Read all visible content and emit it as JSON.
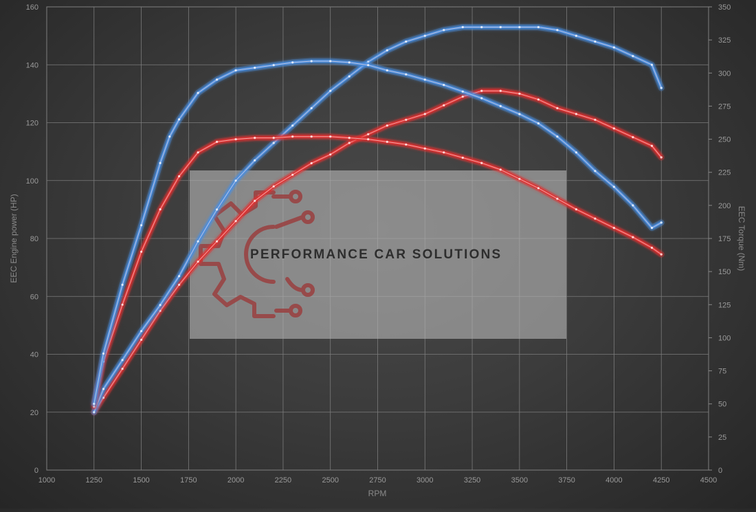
{
  "chart_data": {
    "type": "line",
    "xlabel": "RPM",
    "ylabel_left": "EEC Engine power (HP)",
    "ylabel_right": "EEC Torque (Nm)",
    "xlim": [
      1000,
      4500
    ],
    "xticks": [
      1000,
      1250,
      1500,
      1750,
      2000,
      2250,
      2500,
      2750,
      3000,
      3250,
      3500,
      3750,
      4000,
      4250,
      4500
    ],
    "ylim_left": [
      0,
      160
    ],
    "yticks_left": [
      0,
      20,
      40,
      60,
      80,
      100,
      120,
      140,
      160
    ],
    "ylim_right": [
      0,
      350
    ],
    "yticks_right": [
      0,
      25,
      50,
      75,
      100,
      125,
      150,
      175,
      200,
      225,
      250,
      275,
      300,
      325,
      350
    ],
    "grid": true,
    "series": [
      {
        "axis": "left",
        "color": "#e03030",
        "x": [
          1250,
          1300,
          1400,
          1500,
          1600,
          1700,
          1800,
          1900,
          2000,
          2100,
          2200,
          2300,
          2400,
          2500,
          2600,
          2700,
          2800,
          2900,
          3000,
          3100,
          3200,
          3300,
          3400,
          3500,
          3600,
          3700,
          3800,
          3900,
          4000,
          4100,
          4200,
          4250
        ],
        "values": [
          20,
          25,
          35,
          45,
          55,
          64,
          72,
          79,
          86,
          93,
          98,
          102,
          106,
          109,
          113,
          116,
          119,
          121,
          123,
          126,
          129,
          131,
          131,
          130,
          128,
          125,
          123,
          121,
          118,
          115,
          112,
          108
        ]
      },
      {
        "axis": "left",
        "color": "#4a8ee0",
        "x": [
          1250,
          1300,
          1400,
          1500,
          1600,
          1700,
          1800,
          1900,
          2000,
          2100,
          2200,
          2300,
          2400,
          2500,
          2600,
          2700,
          2800,
          2900,
          3000,
          3100,
          3200,
          3300,
          3400,
          3500,
          3600,
          3700,
          3800,
          3900,
          4000,
          4100,
          4200,
          4250
        ],
        "values": [
          20,
          28,
          38,
          48,
          57,
          67,
          79,
          90,
          100,
          107,
          113,
          119,
          125,
          131,
          136,
          141,
          145,
          148,
          150,
          152,
          153,
          153,
          153,
          153,
          153,
          152,
          150,
          148,
          146,
          143,
          140,
          132
        ]
      },
      {
        "axis": "right",
        "color": "#e03030",
        "x": [
          1250,
          1300,
          1400,
          1500,
          1600,
          1700,
          1800,
          1900,
          2000,
          2100,
          2200,
          2300,
          2400,
          2500,
          2600,
          2700,
          2800,
          2900,
          3000,
          3100,
          3200,
          3300,
          3400,
          3500,
          3600,
          3700,
          3800,
          3900,
          4000,
          4100,
          4200,
          4250
        ],
        "values": [
          48,
          82,
          125,
          165,
          197,
          222,
          240,
          248,
          250,
          251,
          251,
          252,
          252,
          252,
          251,
          250,
          248,
          246,
          243,
          240,
          236,
          232,
          227,
          220,
          213,
          205,
          197,
          190,
          183,
          176,
          168,
          163
        ]
      },
      {
        "axis": "right",
        "color": "#4a8ee0",
        "x": [
          1250,
          1300,
          1400,
          1500,
          1600,
          1650,
          1700,
          1800,
          1900,
          2000,
          2100,
          2200,
          2300,
          2400,
          2500,
          2600,
          2700,
          2800,
          2900,
          3000,
          3100,
          3200,
          3300,
          3400,
          3500,
          3600,
          3700,
          3800,
          3900,
          4000,
          4100,
          4200,
          4250
        ],
        "values": [
          50,
          88,
          140,
          185,
          232,
          252,
          265,
          285,
          295,
          302,
          304,
          306,
          308,
          309,
          309,
          308,
          306,
          302,
          299,
          295,
          291,
          286,
          281,
          275,
          269,
          262,
          252,
          240,
          226,
          214,
          200,
          183,
          187
        ]
      }
    ]
  },
  "watermark": {
    "text": "PERFORMANCE CAR SOLUTIONS"
  }
}
